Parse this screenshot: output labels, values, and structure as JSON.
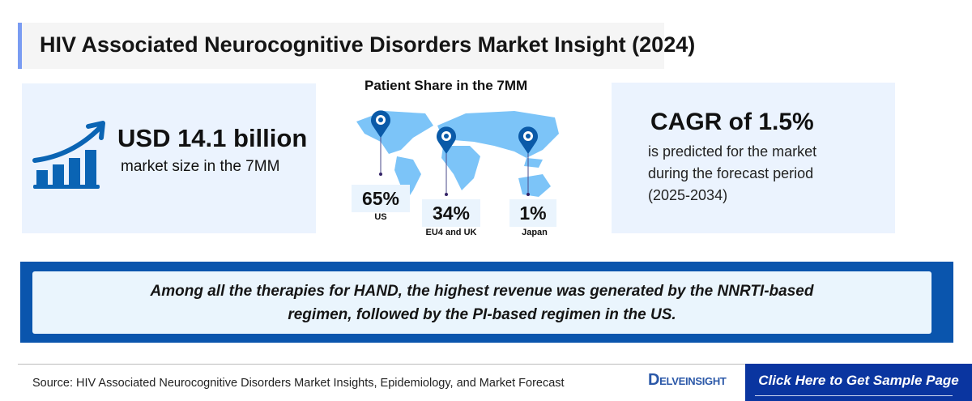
{
  "title": "HIV Associated Neurocognitive Disorders Market Insight (2024)",
  "market_size": {
    "value": "USD 14.1 billion",
    "label": "market size in the 7MM",
    "icon": "growth-chart-icon"
  },
  "patient_share": {
    "title": "Patient Share in the 7MM",
    "regions": [
      {
        "value": "65%",
        "label": "US"
      },
      {
        "value": "34%",
        "label": "EU4 and UK"
      },
      {
        "value": "1%",
        "label": "Japan"
      }
    ]
  },
  "cagr": {
    "value": "CAGR of 1.5%",
    "line1": "is predicted for the market",
    "line2": "during the forecast period",
    "line3": "(2025-2034)"
  },
  "banner": {
    "line1": "Among all the therapies for HAND, the highest revenue was generated by the NNRTI-based",
    "line2": "regimen, followed by the PI-based regimen in the US."
  },
  "footer": {
    "source": "Source: HIV Associated Neurocognitive Disorders Market Insights, Epidemiology, and Market Forecast",
    "logo": "DELVEINSIGHT",
    "cta": "Click Here to Get Sample Page"
  },
  "colors": {
    "accent": "#0a55ad",
    "card": "#ebf3fe",
    "map": "#7cc4f8",
    "pin": "#0a5aa8"
  }
}
